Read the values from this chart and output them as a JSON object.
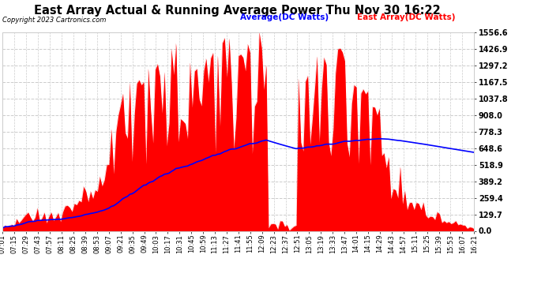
{
  "title": "East Array Actual & Running Average Power Thu Nov 30 16:22",
  "copyright": "Copyright 2023 Cartronics.com",
  "ylabel_right_values": [
    1556.6,
    1426.9,
    1297.2,
    1167.5,
    1037.8,
    908.0,
    778.3,
    648.6,
    518.9,
    389.2,
    259.4,
    129.7,
    0.0
  ],
  "ymax": 1556.6,
  "ymin": 0.0,
  "legend_avg_label": "Average(DC Watts)",
  "legend_east_label": "East Array(DC Watts)",
  "avg_color": "blue",
  "east_color": "red",
  "background_color": "#ffffff",
  "plot_bg_color": "#ffffff",
  "grid_color": "#cccccc",
  "title_fontsize": 11,
  "tick_fontsize": 7,
  "x_tick_labels": [
    "07:01",
    "07:15",
    "07:29",
    "07:43",
    "07:57",
    "08:11",
    "08:25",
    "08:39",
    "08:53",
    "09:07",
    "09:21",
    "09:35",
    "09:49",
    "10:03",
    "10:17",
    "10:31",
    "10:45",
    "10:59",
    "11:13",
    "11:27",
    "11:41",
    "11:55",
    "12:09",
    "12:23",
    "12:37",
    "12:51",
    "13:05",
    "13:19",
    "13:33",
    "13:47",
    "14:01",
    "14:15",
    "14:29",
    "14:43",
    "14:57",
    "15:11",
    "15:25",
    "15:39",
    "15:53",
    "16:07",
    "16:21"
  ]
}
